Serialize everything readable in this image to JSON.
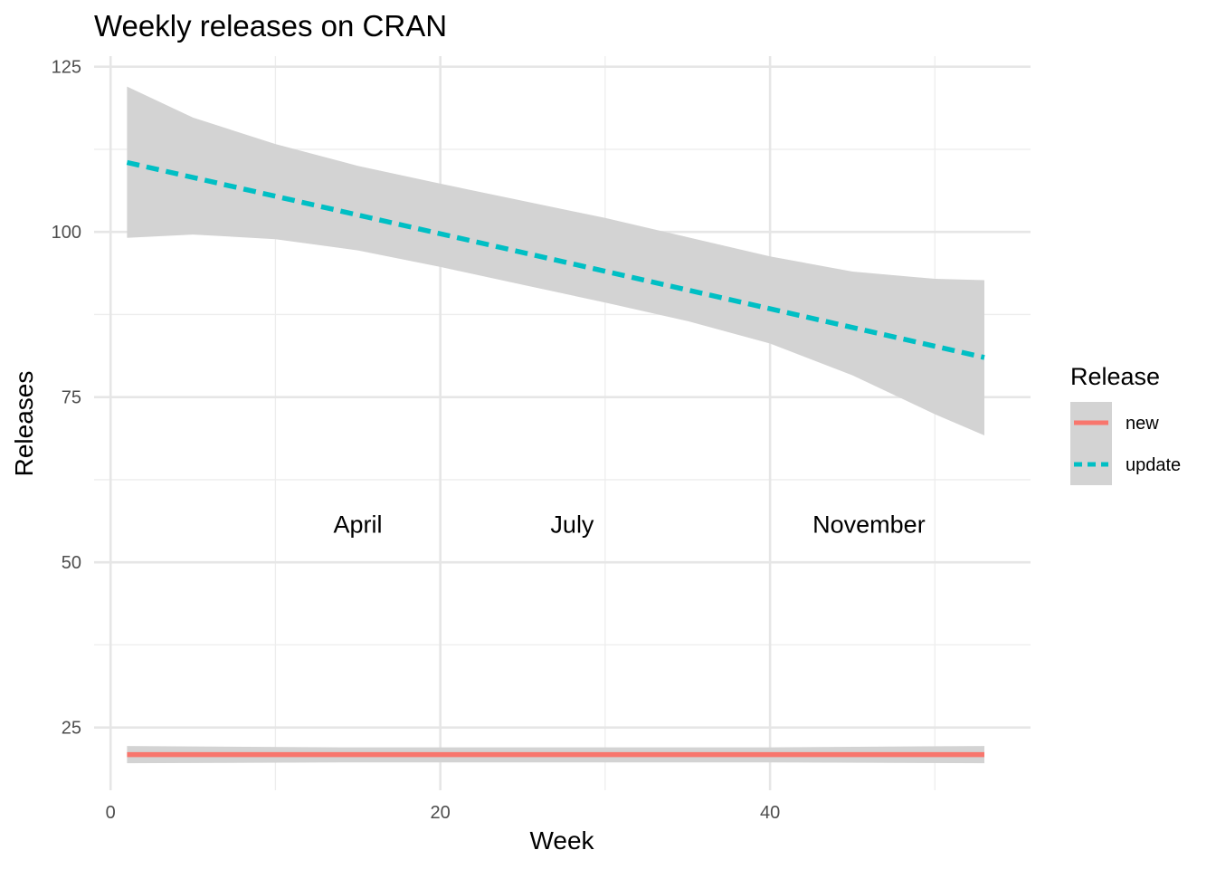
{
  "chart_data": {
    "type": "line",
    "title": "Weekly releases on CRAN",
    "xlabel": "Week",
    "ylabel": "Releases",
    "xlim": [
      -1,
      55.8
    ],
    "ylim": [
      15.5,
      126.6
    ],
    "x_ticks": [
      0,
      20,
      40
    ],
    "y_ticks": [
      25,
      50,
      75,
      100,
      125
    ],
    "grid": true,
    "legend": {
      "title": "Release",
      "placement": "right",
      "entries": [
        {
          "label": "new",
          "color": "#F8766D",
          "dash": "solid"
        },
        {
          "label": "update",
          "color": "#00BFC4",
          "dash": "dashed"
        }
      ]
    },
    "ribbon_color": "#d3d3d3",
    "annotations": [
      {
        "text": "April",
        "x": 15,
        "y": 54.5
      },
      {
        "text": "July",
        "x": 28,
        "y": 54.5
      },
      {
        "text": "November",
        "x": 46,
        "y": 54.5
      }
    ],
    "series": [
      {
        "name": "new",
        "color": "#F8766D",
        "dash": "solid",
        "x": [
          1,
          53
        ],
        "values": [
          20.9,
          20.9
        ],
        "ribbon_x": [
          1,
          14,
          27,
          40,
          53
        ],
        "ribbon_lower": [
          19.6,
          19.7,
          19.7,
          19.7,
          19.6
        ],
        "ribbon_upper": [
          22.2,
          22.0,
          22.0,
          22.0,
          22.2
        ]
      },
      {
        "name": "update",
        "color": "#00BFC4",
        "dash": "dashed",
        "x": [
          1,
          53
        ],
        "values": [
          110.5,
          81.0
        ],
        "ribbon_x": [
          1,
          5,
          10,
          15,
          20,
          25,
          30,
          35,
          40,
          45,
          50,
          53
        ],
        "ribbon_lower": [
          99.1,
          99.6,
          98.9,
          97.2,
          94.7,
          92.0,
          89.3,
          86.5,
          83.1,
          78.3,
          72.4,
          69.2
        ],
        "ribbon_upper": [
          122.0,
          117.3,
          113.3,
          110.0,
          107.3,
          104.7,
          102.1,
          99.2,
          96.3,
          94.0,
          92.9,
          92.7
        ]
      }
    ]
  }
}
